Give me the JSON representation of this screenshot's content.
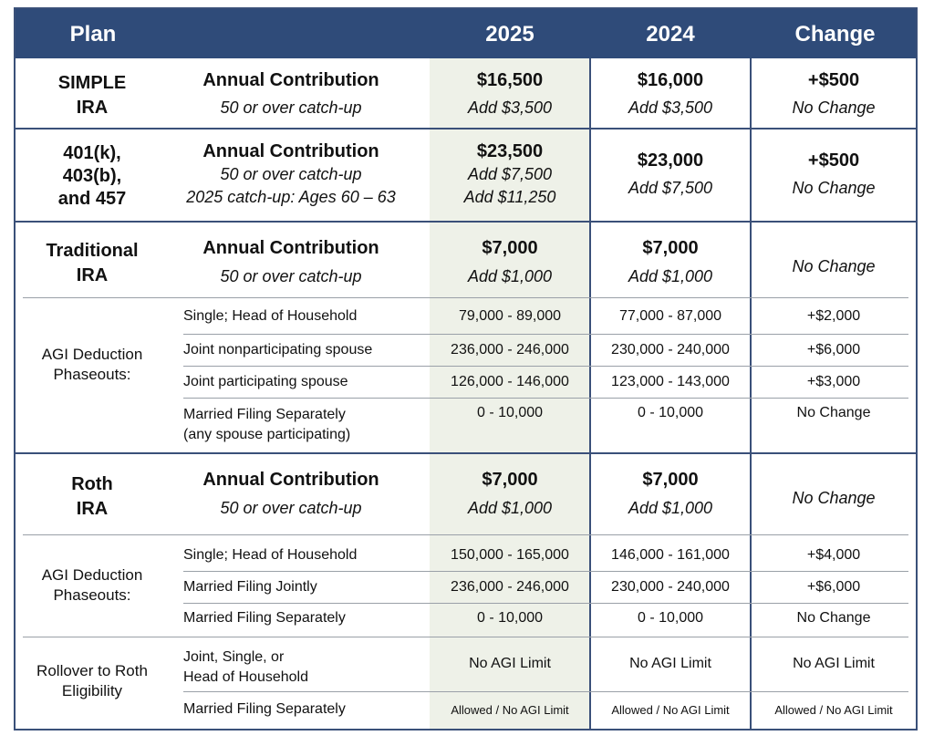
{
  "header": {
    "plan": "Plan",
    "y2025": "2025",
    "y2024": "2024",
    "change": "Change"
  },
  "simple": {
    "plan": "SIMPLE\nIRA",
    "label": "Annual Contribution",
    "sub": "50 or over catch-up",
    "v2025": "$16,500",
    "v2025_sub": "Add $3,500",
    "v2024": "$16,000",
    "v2024_sub": "Add $3,500",
    "change": "+$500",
    "change_sub": "No Change"
  },
  "k401": {
    "plan": "401(k),\n403(b),\nand 457",
    "label": "Annual Contribution",
    "sub": "50 or over catch-up",
    "sub2": "2025 catch-up: Ages 60 – 63",
    "v2025": "$23,500",
    "v2025_sub": "Add $7,500",
    "v2025_sub2": "Add $11,250",
    "v2024": "$23,000",
    "v2024_sub": "Add $7,500",
    "change": "+$500",
    "change_sub": "No Change"
  },
  "trad": {
    "plan": "Traditional\nIRA",
    "label": "Annual Contribution",
    "sub": "50 or over catch-up",
    "v2025": "$7,000",
    "v2025_sub": "Add $1,000",
    "v2024": "$7,000",
    "v2024_sub": "Add $1,000",
    "change": "No Change",
    "agi_label": "AGI Deduction\nPhaseouts:",
    "rows": [
      {
        "label": "Single; Head of Household",
        "v2025": "79,000 - 89,000",
        "v2024": "77,000 - 87,000",
        "change": "+$2,000"
      },
      {
        "label": "Joint nonparticipating spouse",
        "v2025": "236,000 - 246,000",
        "v2024": "230,000 - 240,000",
        "change": "+$6,000"
      },
      {
        "label": "Joint participating spouse",
        "v2025": "126,000 - 146,000",
        "v2024": "123,000 - 143,000",
        "change": "+$3,000"
      },
      {
        "label": "Married Filing Separately\n(any spouse participating)",
        "v2025": "0 - 10,000",
        "v2024": "0 - 10,000",
        "change": "No Change"
      }
    ]
  },
  "roth": {
    "plan": "Roth\nIRA",
    "label": "Annual Contribution",
    "sub": "50 or over catch-up",
    "v2025": "$7,000",
    "v2025_sub": "Add $1,000",
    "v2024": "$7,000",
    "v2024_sub": "Add $1,000",
    "change": "No Change",
    "agi_label": "AGI Deduction\nPhaseouts:",
    "rows": [
      {
        "label": "Single; Head of Household",
        "v2025": "150,000 - 165,000",
        "v2024": "146,000 - 161,000",
        "change": "+$4,000"
      },
      {
        "label": "Married Filing Jointly",
        "v2025": "236,000 - 246,000",
        "v2024": "230,000 - 240,000",
        "change": "+$6,000"
      },
      {
        "label": "Married Filing Separately",
        "v2025": "0 - 10,000",
        "v2024": "0 - 10,000",
        "change": "No Change"
      }
    ]
  },
  "rollover": {
    "label": "Rollover to Roth\nEligibility",
    "rows": [
      {
        "label": "Joint, Single, or\nHead of Household",
        "v2025": "No AGI Limit",
        "v2024": "No AGI Limit",
        "change": "No AGI Limit"
      },
      {
        "label": "Married Filing Separately",
        "v2025": "Allowed / No AGI Limit",
        "v2024": "Allowed / No AGI Limit",
        "change": "Allowed / No AGI Limit"
      }
    ]
  }
}
